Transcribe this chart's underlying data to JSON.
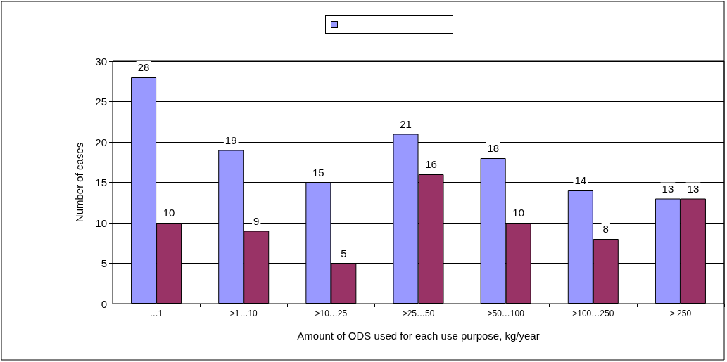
{
  "chart_data": {
    "type": "bar",
    "xlabel": "Amount of ODS used for each use purpose, kg/year",
    "ylabel": "Number of cases",
    "categories": [
      "…1",
      ">1…10",
      ">10…25",
      ">25…50",
      ">50…100",
      ">100…250",
      "> 250"
    ],
    "series": [
      {
        "color": "#9999ff",
        "values": [
          28,
          19,
          15,
          21,
          18,
          14,
          13
        ]
      },
      {
        "color": "#993366",
        "values": [
          10,
          9,
          5,
          16,
          10,
          8,
          13
        ]
      }
    ],
    "ylim": [
      0,
      30
    ],
    "yticks": [
      0,
      5,
      10,
      15,
      20,
      25,
      30
    ],
    "grid": "y",
    "data_labels": true
  }
}
